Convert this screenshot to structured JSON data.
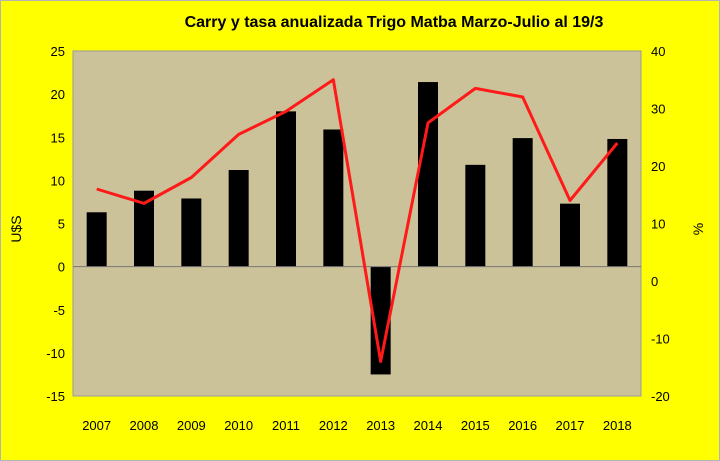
{
  "chart_data": {
    "type": "bar",
    "title": "Carry y tasa anualizada Trigo Matba Marzo-Julio  al 19/3",
    "categories": [
      "2007",
      "2008",
      "2009",
      "2010",
      "2011",
      "2012",
      "2013",
      "2014",
      "2015",
      "2016",
      "2017",
      "2018"
    ],
    "ylabel_left": "U$S",
    "ylabel_right": "%",
    "ylim_left": [
      -15,
      25
    ],
    "ylim_right": [
      -20,
      40
    ],
    "yticks_left": [
      -15,
      -10,
      -5,
      0,
      5,
      10,
      15,
      20,
      25
    ],
    "yticks_right": [
      -20,
      -10,
      0,
      10,
      20,
      30,
      40
    ],
    "grid": false,
    "legend": "none",
    "series": [
      {
        "type": "bar",
        "axis": "left",
        "color": "#000000",
        "values": [
          6.3,
          8.8,
          7.9,
          11.2,
          18.0,
          15.9,
          -12.5,
          21.4,
          11.8,
          14.9,
          7.3,
          14.8
        ]
      },
      {
        "type": "line",
        "axis": "right",
        "color": "#ff1a1a",
        "values": [
          16.0,
          13.5,
          18.0,
          25.5,
          29.5,
          35.0,
          -14.0,
          27.5,
          33.5,
          32.0,
          14.0,
          24.0
        ]
      }
    ],
    "colors": {
      "outer_background": "#ffff00",
      "plot_background": "#ccc299"
    }
  }
}
